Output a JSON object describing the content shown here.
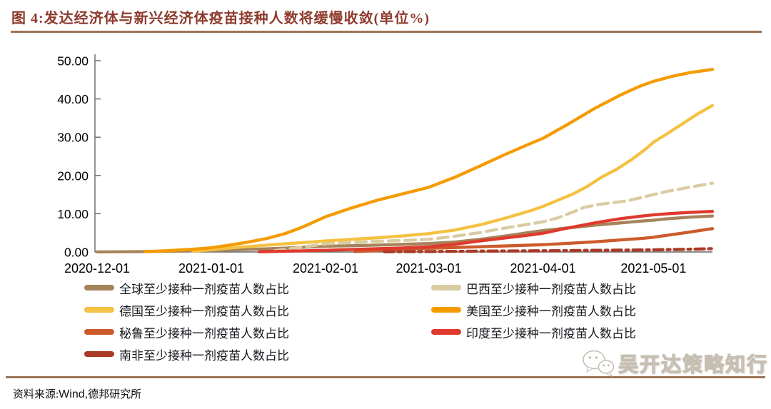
{
  "header": {
    "title": "图 4:发达经济体与新兴经济体疫苗接种人数将缓慢收敛(单位%)"
  },
  "source": {
    "label": "资料来源:",
    "vendor": "Wind,",
    "org": "德邦研究所"
  },
  "watermark": {
    "text": "吴开达策略知行",
    "icon": "wechat-chat-bubbles-icon"
  },
  "colors": {
    "title": "#8E3B2D",
    "rule": "#9C7457",
    "axis": "#666666",
    "tick_text": "#000000"
  },
  "chart_data": {
    "type": "line",
    "title": "发达经济体与新兴经济体疫苗接种人数将缓慢收敛",
    "unit": "%",
    "x_unit": "days since 2020-12-01",
    "xlim_days": [
      0,
      167
    ],
    "ylim": [
      0,
      50
    ],
    "grid": false,
    "legend_position": "bottom-two-columns",
    "y_ticks": [
      {
        "v": 0,
        "label": "0.00"
      },
      {
        "v": 10,
        "label": "10.00"
      },
      {
        "v": 20,
        "label": "20.00"
      },
      {
        "v": 30,
        "label": "30.00"
      },
      {
        "v": 40,
        "label": "40.00"
      },
      {
        "v": 50,
        "label": "50.00"
      }
    ],
    "x_ticks": [
      {
        "d": 0,
        "label": "2020-12-01"
      },
      {
        "d": 31,
        "label": "2021-01-01"
      },
      {
        "d": 62,
        "label": "2021-02-01"
      },
      {
        "d": 90,
        "label": "2021-03-01"
      },
      {
        "d": 121,
        "label": "2021-04-01"
      },
      {
        "d": 151,
        "label": "2021-05-01"
      }
    ],
    "series": [
      {
        "key": "global",
        "label": "全球至少接种一剂疫苗人数占比",
        "color": "#A6835B",
        "dash": null,
        "points": [
          [
            0,
            0.02
          ],
          [
            10,
            0.08
          ],
          [
            20,
            0.2
          ],
          [
            31,
            0.38
          ],
          [
            41,
            0.65
          ],
          [
            51,
            1.0
          ],
          [
            62,
            1.5
          ],
          [
            69,
            1.65
          ],
          [
            76,
            1.8
          ],
          [
            83,
            2.0
          ],
          [
            90,
            2.2
          ],
          [
            97,
            2.6
          ],
          [
            104,
            3.3
          ],
          [
            111,
            4.2
          ],
          [
            118,
            5.2
          ],
          [
            121,
            5.6
          ],
          [
            128,
            6.3
          ],
          [
            135,
            7.0
          ],
          [
            142,
            7.6
          ],
          [
            148,
            8.1
          ],
          [
            151,
            8.3
          ],
          [
            155,
            8.7
          ],
          [
            161,
            9.1
          ],
          [
            167,
            9.4
          ]
        ]
      },
      {
        "key": "brazil",
        "label": "巴西至少接种一剂疫苗人数占比",
        "color": "#D9CCA3",
        "dash": [
          15,
          8
        ],
        "points": [
          [
            48,
            0.3
          ],
          [
            55,
            1.2
          ],
          [
            62,
            2.1
          ],
          [
            69,
            2.5
          ],
          [
            76,
            2.8
          ],
          [
            83,
            3.0
          ],
          [
            90,
            3.3
          ],
          [
            97,
            4.1
          ],
          [
            104,
            5.1
          ],
          [
            111,
            6.3
          ],
          [
            118,
            7.4
          ],
          [
            121,
            7.9
          ],
          [
            125,
            8.9
          ],
          [
            129,
            10.4
          ],
          [
            132,
            11.6
          ],
          [
            136,
            12.4
          ],
          [
            140,
            12.9
          ],
          [
            144,
            13.4
          ],
          [
            148,
            14.3
          ],
          [
            151,
            15.0
          ],
          [
            155,
            15.9
          ],
          [
            159,
            16.6
          ],
          [
            163,
            17.3
          ],
          [
            167,
            18.0
          ]
        ]
      },
      {
        "key": "germany",
        "label": "德国至少接种一剂疫苗人数占比",
        "color": "#F5C142",
        "dash": null,
        "points": [
          [
            26,
            0.2
          ],
          [
            31,
            0.6
          ],
          [
            38,
            1.2
          ],
          [
            45,
            1.7
          ],
          [
            52,
            2.2
          ],
          [
            58,
            2.6
          ],
          [
            62,
            2.9
          ],
          [
            69,
            3.3
          ],
          [
            76,
            3.7
          ],
          [
            83,
            4.2
          ],
          [
            90,
            4.8
          ],
          [
            97,
            5.7
          ],
          [
            104,
            7.1
          ],
          [
            111,
            8.9
          ],
          [
            118,
            10.9
          ],
          [
            121,
            11.9
          ],
          [
            125,
            13.5
          ],
          [
            129,
            15.1
          ],
          [
            133,
            17.1
          ],
          [
            137,
            19.6
          ],
          [
            141,
            21.6
          ],
          [
            145,
            24.1
          ],
          [
            149,
            27.0
          ],
          [
            151,
            28.7
          ],
          [
            155,
            31.1
          ],
          [
            159,
            33.6
          ],
          [
            163,
            36.1
          ],
          [
            167,
            38.3
          ]
        ]
      },
      {
        "key": "us",
        "label": "美国至少接种一剂疫苗人数占比",
        "color": "#F59B00",
        "dash": null,
        "points": [
          [
            13,
            0.1
          ],
          [
            17,
            0.25
          ],
          [
            21,
            0.45
          ],
          [
            26,
            0.7
          ],
          [
            31,
            1.1
          ],
          [
            36,
            1.8
          ],
          [
            41,
            2.6
          ],
          [
            46,
            3.5
          ],
          [
            51,
            4.8
          ],
          [
            56,
            6.6
          ],
          [
            62,
            9.2
          ],
          [
            69,
            11.5
          ],
          [
            76,
            13.5
          ],
          [
            83,
            15.2
          ],
          [
            90,
            16.9
          ],
          [
            97,
            19.5
          ],
          [
            104,
            22.5
          ],
          [
            111,
            25.6
          ],
          [
            118,
            28.5
          ],
          [
            121,
            29.7
          ],
          [
            128,
            33.5
          ],
          [
            135,
            37.5
          ],
          [
            142,
            41.0
          ],
          [
            147,
            43.2
          ],
          [
            151,
            44.6
          ],
          [
            156,
            45.9
          ],
          [
            161,
            46.9
          ],
          [
            167,
            47.7
          ]
        ]
      },
      {
        "key": "peru",
        "label": "秘鲁至少接种一剂疫苗人数占比",
        "color": "#CC5B2B",
        "dash": null,
        "points": [
          [
            70,
            0.1
          ],
          [
            80,
            0.55
          ],
          [
            90,
            0.95
          ],
          [
            100,
            1.25
          ],
          [
            110,
            1.55
          ],
          [
            121,
            1.9
          ],
          [
            128,
            2.25
          ],
          [
            135,
            2.65
          ],
          [
            142,
            3.15
          ],
          [
            148,
            3.55
          ],
          [
            151,
            3.85
          ],
          [
            155,
            4.4
          ],
          [
            160,
            5.1
          ],
          [
            167,
            6.1
          ]
        ]
      },
      {
        "key": "india",
        "label": "印度至少接种一剂疫苗人数占比",
        "color": "#E0392E",
        "dash": null,
        "points": [
          [
            44,
            0.05
          ],
          [
            52,
            0.2
          ],
          [
            62,
            0.45
          ],
          [
            69,
            0.65
          ],
          [
            76,
            0.85
          ],
          [
            83,
            1.05
          ],
          [
            90,
            1.35
          ],
          [
            97,
            2.0
          ],
          [
            104,
            2.9
          ],
          [
            111,
            3.7
          ],
          [
            118,
            4.5
          ],
          [
            121,
            4.9
          ],
          [
            128,
            6.3
          ],
          [
            135,
            7.6
          ],
          [
            142,
            8.7
          ],
          [
            148,
            9.4
          ],
          [
            151,
            9.7
          ],
          [
            155,
            10.0
          ],
          [
            160,
            10.3
          ],
          [
            167,
            10.6
          ]
        ]
      },
      {
        "key": "south_africa",
        "label": "南非至少接种一剂疫苗人数占比",
        "color": "#A93A26",
        "dash": [
          13,
          6,
          4,
          6
        ],
        "points": [
          [
            78,
            0.05
          ],
          [
            90,
            0.12
          ],
          [
            105,
            0.22
          ],
          [
            121,
            0.32
          ],
          [
            135,
            0.42
          ],
          [
            148,
            0.52
          ],
          [
            155,
            0.62
          ],
          [
            162,
            0.72
          ],
          [
            167,
            0.85
          ]
        ]
      }
    ]
  }
}
